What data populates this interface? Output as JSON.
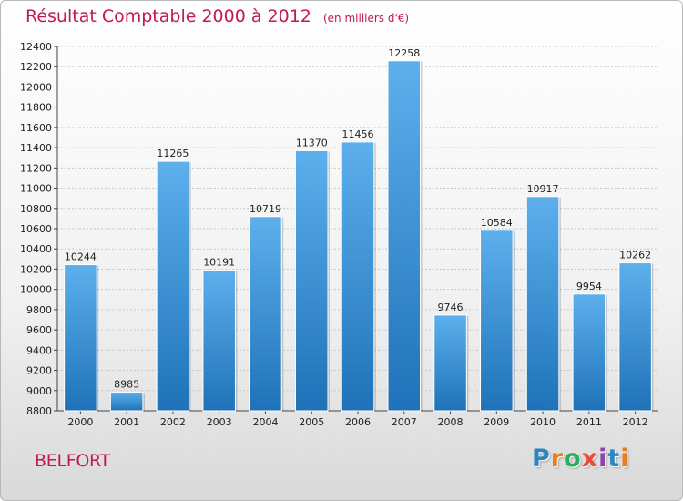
{
  "chart_data": {
    "type": "bar",
    "title": "Résultat Comptable 2000 à 2012",
    "subtitle": "(en milliers d'€)",
    "categories": [
      "2000",
      "2001",
      "2002",
      "2003",
      "2004",
      "2005",
      "2006",
      "2007",
      "2008",
      "2009",
      "2010",
      "2011",
      "2012"
    ],
    "values": [
      10244,
      8985,
      11265,
      10191,
      10719,
      11370,
      11456,
      12258,
      9746,
      10584,
      10917,
      9954,
      10262
    ],
    "ylim": [
      8800,
      12400
    ],
    "yticks": [
      8800,
      9000,
      9200,
      9400,
      9600,
      9800,
      10000,
      10200,
      10400,
      10600,
      10800,
      11000,
      11200,
      11400,
      11600,
      11800,
      12000,
      12200,
      12400
    ],
    "xlabel": "",
    "ylabel": "",
    "grid": true,
    "bar_color": "#3a8fd6"
  },
  "footer": {
    "city": "BELFORT",
    "logo_letters": [
      "P",
      "r",
      "o",
      "x",
      "i",
      "t",
      "i"
    ],
    "logo_colors": [
      "#2e86c1",
      "#e67e22",
      "#27ae60",
      "#e74c3c",
      "#8e44ad",
      "#2e86c1",
      "#e67e22"
    ]
  }
}
